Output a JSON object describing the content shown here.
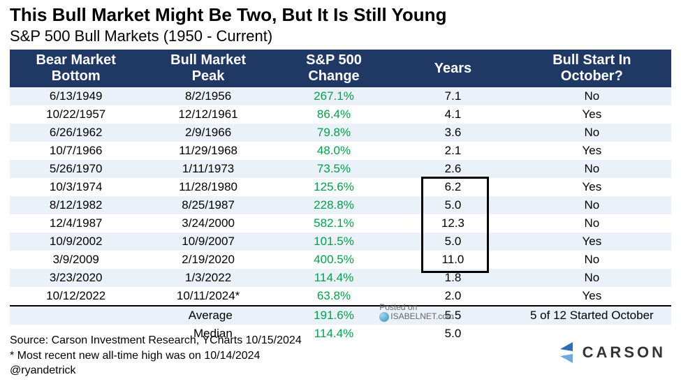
{
  "title": "This Bull Market Might Be Two, But It Is Still Young",
  "subtitle": "S&P 500 Bull Markets (1950 - Current)",
  "colors": {
    "header_bg": "#1f3864",
    "header_fg": "#ffffff",
    "band_light": "#eaf1f8",
    "band_white": "#ffffff",
    "change_fg": "#00a14b",
    "text": "#000000"
  },
  "table": {
    "columns": [
      "Bear Market Bottom",
      "Bull Market Peak",
      "S&P 500 Change",
      "Years",
      "Bull Start In October?"
    ],
    "col_widths_pct": [
      20,
      20,
      18,
      18,
      24
    ],
    "header_fontsize": 20,
    "cell_fontsize": 17,
    "rows": [
      {
        "bottom": "6/13/1949",
        "peak": "8/2/1956",
        "change": "267.1%",
        "years": "7.1",
        "oct": "No"
      },
      {
        "bottom": "10/22/1957",
        "peak": "12/12/1961",
        "change": "86.4%",
        "years": "4.1",
        "oct": "Yes"
      },
      {
        "bottom": "6/26/1962",
        "peak": "2/9/1966",
        "change": "79.8%",
        "years": "3.6",
        "oct": "No"
      },
      {
        "bottom": "10/7/1966",
        "peak": "11/29/1968",
        "change": "48.0%",
        "years": "2.1",
        "oct": "Yes"
      },
      {
        "bottom": "5/26/1970",
        "peak": "1/11/1973",
        "change": "73.5%",
        "years": "2.6",
        "oct": "No"
      },
      {
        "bottom": "10/3/1974",
        "peak": "11/28/1980",
        "change": "125.6%",
        "years": "6.2",
        "oct": "Yes"
      },
      {
        "bottom": "8/12/1982",
        "peak": "8/25/1987",
        "change": "228.8%",
        "years": "5.0",
        "oct": "No"
      },
      {
        "bottom": "12/4/1987",
        "peak": "3/24/2000",
        "change": "582.1%",
        "years": "12.3",
        "oct": "No"
      },
      {
        "bottom": "10/9/2002",
        "peak": "10/9/2007",
        "change": "101.5%",
        "years": "5.0",
        "oct": "Yes"
      },
      {
        "bottom": "3/9/2009",
        "peak": "2/19/2020",
        "change": "400.5%",
        "years": "11.0",
        "oct": "No"
      },
      {
        "bottom": "3/23/2020",
        "peak": "1/3/2022",
        "change": "114.4%",
        "years": "1.8",
        "oct": "No"
      },
      {
        "bottom": "10/12/2022",
        "peak": "10/11/2024*",
        "change": "63.8%",
        "years": "2.0",
        "oct": "Yes"
      }
    ],
    "highlight_years_rows": {
      "start": 5,
      "end": 9
    },
    "summary": [
      {
        "label": "Average",
        "change": "191.6%",
        "years": "5.5",
        "oct": "5 of 12 Started October"
      },
      {
        "label": "Median",
        "change": "114.4%",
        "years": "5.0",
        "oct": ""
      }
    ]
  },
  "watermark": {
    "line1": "Posted on",
    "line2": "ISABELNET.com"
  },
  "footer": {
    "source": "Source: Carson Investment Research, YCharts 10/15/2024",
    "note": "* Most recent new all-time high was on 10/14/2024",
    "handle": "@ryandetrick"
  },
  "logo_text": "CARSON"
}
